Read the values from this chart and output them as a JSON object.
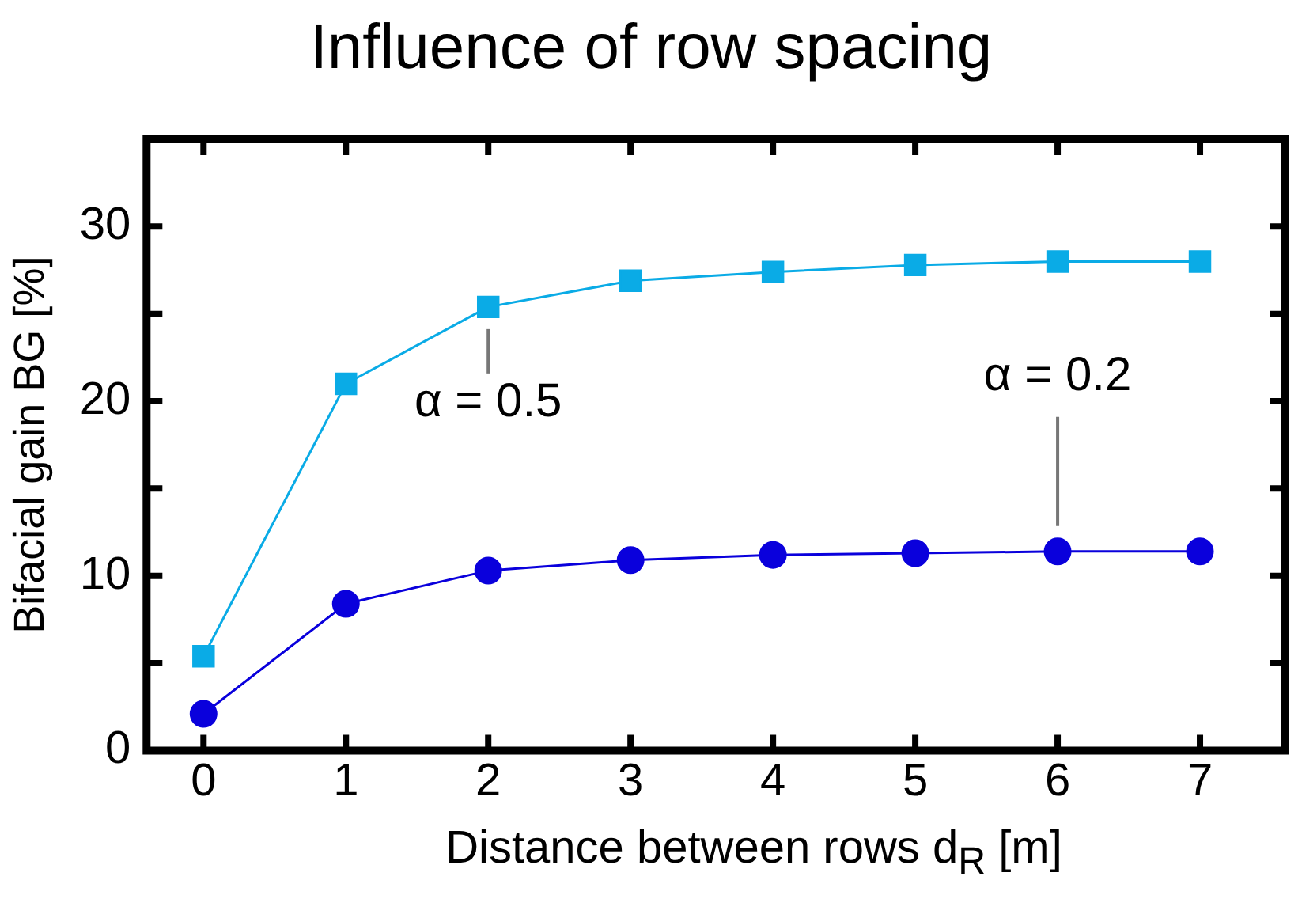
{
  "chart_data": {
    "type": "line",
    "title": "Influence of row spacing",
    "xlabel": "Distance between rows d$_{R}$ [m]",
    "ylabel": "Bifacial gain BG [%]",
    "x": [
      0,
      1,
      2,
      3,
      4,
      5,
      6,
      7
    ],
    "series": [
      {
        "name": "α = 0.5",
        "color": "#0aabe6",
        "marker": "square",
        "values": [
          5.4,
          21.0,
          25.4,
          26.9,
          27.4,
          27.8,
          28.0,
          28.0
        ]
      },
      {
        "name": "α = 0.2",
        "color": "#0a00dc",
        "marker": "circle",
        "values": [
          2.1,
          8.4,
          10.3,
          10.9,
          11.2,
          11.3,
          11.4,
          11.4
        ]
      }
    ],
    "xlim": [
      -0.4,
      7.6
    ],
    "xticks": [
      0,
      1,
      2,
      3,
      4,
      5,
      6,
      7
    ],
    "ylim": [
      0,
      35
    ],
    "yticks": [
      0,
      {
        "value": 5,
        "label": null
      },
      10,
      {
        "value": 15,
        "label": null
      },
      20,
      {
        "value": 25,
        "label": null
      },
      30
    ],
    "grid": false,
    "legend": false,
    "line_style": "solid"
  }
}
